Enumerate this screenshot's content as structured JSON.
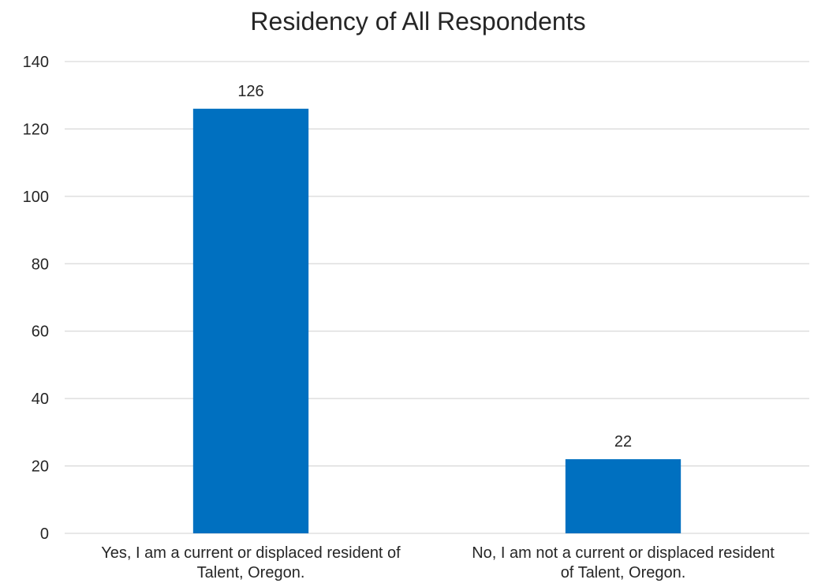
{
  "chart_data": {
    "type": "bar",
    "title": "Residency of All Respondents",
    "categories": [
      [
        "Yes, I am a current or displaced resident of",
        "Talent, Oregon."
      ],
      [
        "No, I am not a current or displaced resident",
        "of Talent, Oregon."
      ]
    ],
    "values": [
      126,
      22
    ],
    "data_labels": [
      "126",
      "22"
    ],
    "ylim": [
      0,
      140
    ],
    "yticks": [
      0,
      20,
      40,
      60,
      80,
      100,
      120,
      140
    ],
    "grid": true,
    "legend": "none",
    "colors": {
      "bar": "#0070C0",
      "grid": "#D9D9D9",
      "text": "#262626"
    }
  }
}
